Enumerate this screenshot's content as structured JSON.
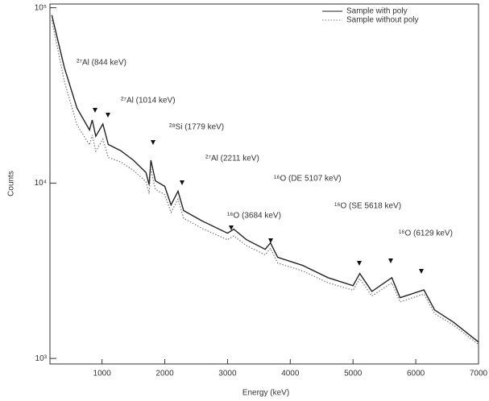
{
  "chart_data": {
    "type": "line",
    "xlabel": "Energy (keV)",
    "ylabel": "Counts",
    "ylog": true,
    "xlim": [
      170,
      7000
    ],
    "ylim": [
      930,
      105000
    ],
    "xticks": [
      1000,
      2000,
      3000,
      4000,
      5000,
      6000,
      7000
    ],
    "yticks": [
      {
        "value": 1000,
        "label": "10³"
      },
      {
        "value": 10000,
        "label": "10⁴"
      },
      {
        "value": 100000,
        "label": "10⁵"
      }
    ],
    "legend": "upper right",
    "x": [
      200,
      400,
      600,
      800,
      844,
      900,
      1014,
      1100,
      1300,
      1500,
      1700,
      1750,
      1779,
      1850,
      2000,
      2100,
      2211,
      2300,
      2600,
      3000,
      3100,
      3300,
      3600,
      3684,
      3800,
      4200,
      4600,
      5000,
      5107,
      5300,
      5618,
      5750,
      6129,
      6300,
      6600,
      7000
    ],
    "series": [
      {
        "name": "Sample with poly",
        "color": "#222222",
        "style": "solid",
        "values": [
          90800,
          45600,
          26800,
          20100,
          22900,
          18500,
          21700,
          16600,
          15300,
          13500,
          11500,
          9790,
          13500,
          10300,
          9580,
          7510,
          8990,
          6970,
          6070,
          5180,
          5460,
          4760,
          4190,
          4560,
          3770,
          3390,
          2890,
          2600,
          3050,
          2410,
          2890,
          2220,
          2460,
          1890,
          1610,
          1240
        ]
      },
      {
        "name": "Sample without poly",
        "color": "#777777",
        "style": "dotted",
        "values": [
          85000,
          38000,
          21500,
          16500,
          18800,
          15200,
          17800,
          14000,
          13200,
          11800,
          10200,
          8700,
          12000,
          9200,
          8600,
          6800,
          8100,
          6300,
          5500,
          4750,
          5000,
          4400,
          3900,
          4250,
          3500,
          3150,
          2700,
          2450,
          2850,
          2270,
          2700,
          2100,
          2330,
          1800,
          1550,
          1200
        ]
      }
    ],
    "annotations": [
      "²⁷Al (844 keV)",
      "²⁷Al (1014 keV)",
      "²⁸Si (1779 keV)",
      "²⁷Al (2211 keV)",
      "¹⁶O (DE 5107 keV)",
      "¹⁶O (3684 keV)",
      "¹⁶O (SE 5618 keV)",
      "¹⁶O (6129 keV)"
    ]
  }
}
